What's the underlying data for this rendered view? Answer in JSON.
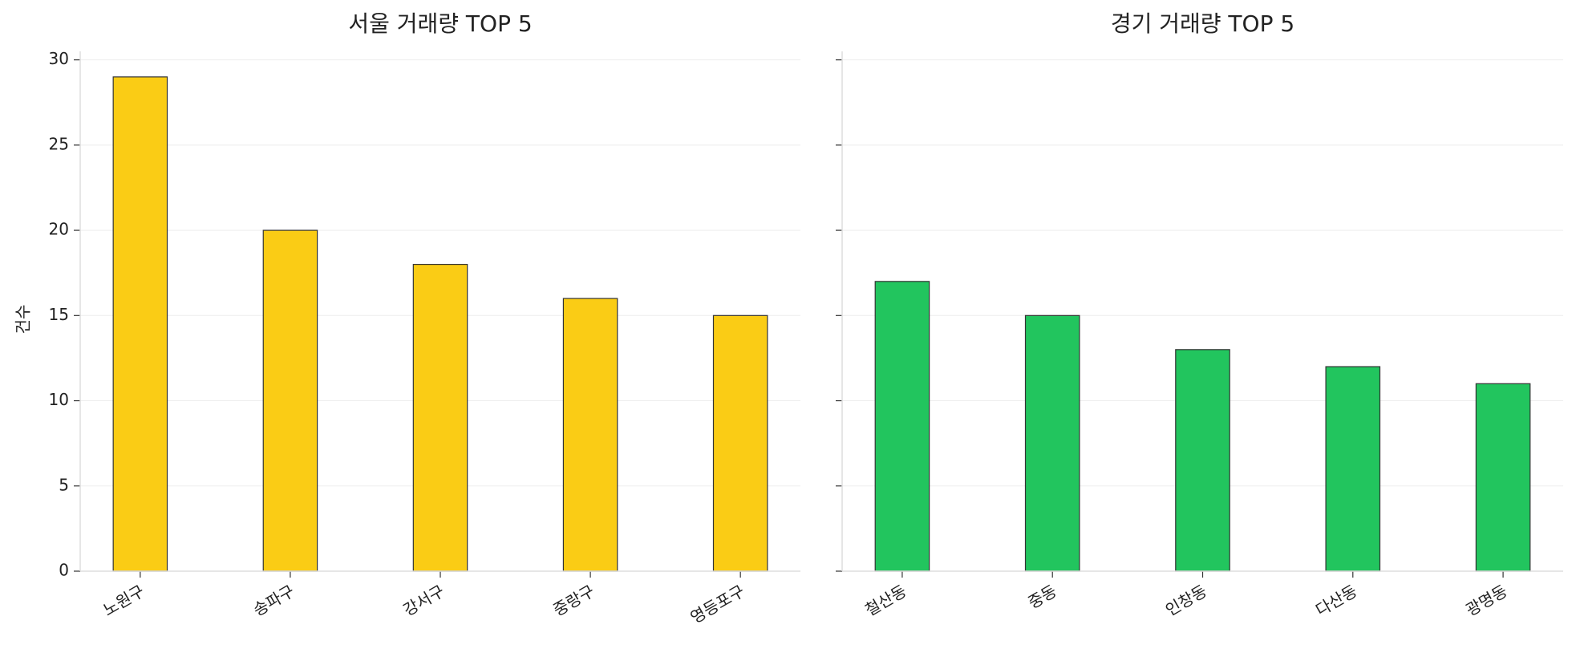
{
  "chart_data": [
    {
      "type": "bar",
      "title": "서울 거래량 TOP 5",
      "ylabel": "건수",
      "categories": [
        "노원구",
        "송파구",
        "강서구",
        "중랑구",
        "영등포구"
      ],
      "values": [
        29,
        20,
        18,
        16,
        15
      ],
      "color": "#facc15",
      "ylim": [
        0,
        30.5
      ],
      "yticks": [
        0,
        5,
        10,
        15,
        20,
        25,
        30
      ],
      "grid": true,
      "show_ytick_labels": true
    },
    {
      "type": "bar",
      "title": "경기 거래량 TOP 5",
      "categories": [
        "철산동",
        "중동",
        "인창동",
        "다산동",
        "광명동"
      ],
      "values": [
        17,
        15,
        13,
        12,
        11
      ],
      "color": "#22c55e",
      "ylim": [
        0,
        30.5
      ],
      "yticks": [
        0,
        5,
        10,
        15,
        20,
        25,
        30
      ],
      "grid": true,
      "show_ytick_labels": false
    }
  ]
}
